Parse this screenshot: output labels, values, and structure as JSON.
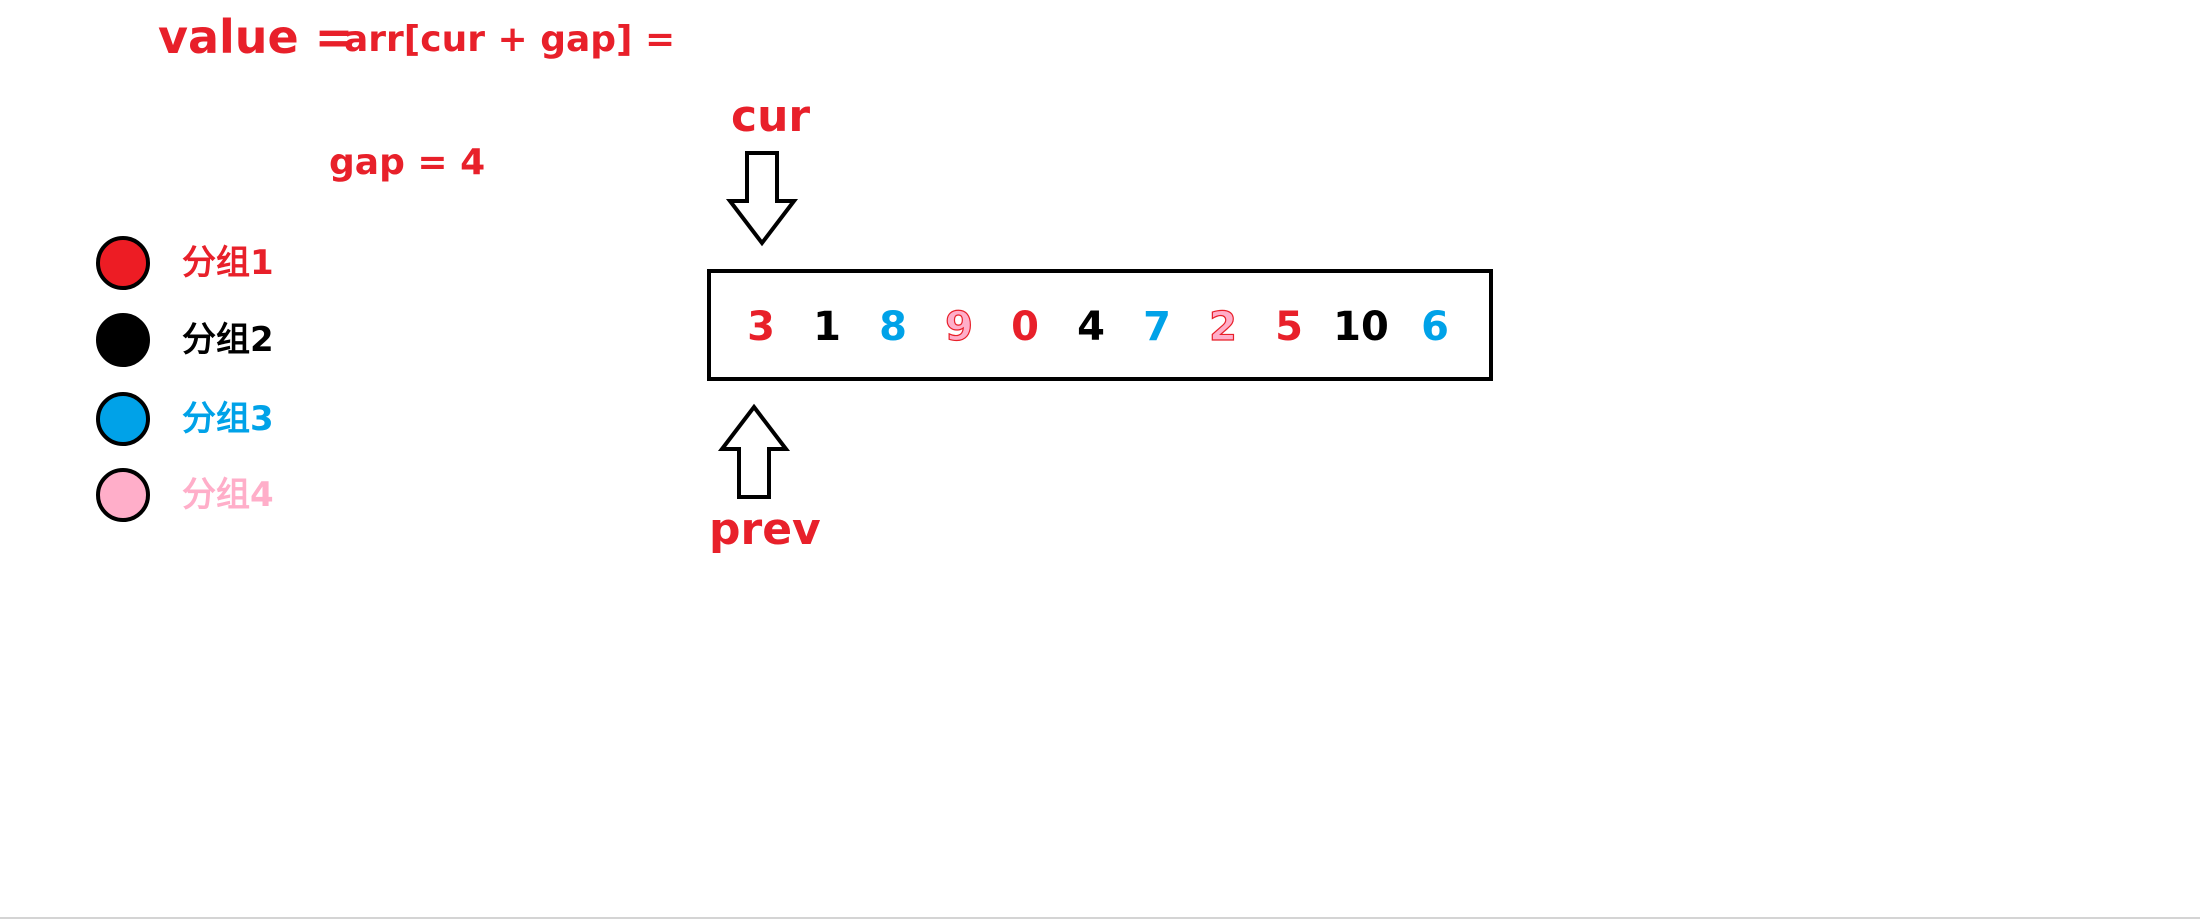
{
  "formula": {
    "value_label": "value =",
    "expression": "arr[cur + gap] ="
  },
  "gap_text": "gap = 4",
  "pointers": {
    "cur_label": "cur",
    "prev_label": "prev",
    "cur_arrow": "down-arrow-icon",
    "prev_arrow": "up-arrow-icon"
  },
  "legend": [
    {
      "label": "分组1",
      "color": "#ed1c24",
      "text_color": "#e8202a"
    },
    {
      "label": "分组2",
      "color": "#000000",
      "text_color": "#000000"
    },
    {
      "label": "分组3",
      "color": "#00a2e8",
      "text_color": "#00a2e8"
    },
    {
      "label": "分组4",
      "color": "#ffaec9",
      "text_color": "#ffaec9"
    }
  ],
  "array": [
    {
      "value": "3",
      "group": 1,
      "color": "#e8202a"
    },
    {
      "value": "1",
      "group": 2,
      "color": "#000000"
    },
    {
      "value": "8",
      "group": 3,
      "color": "#00a2e8"
    },
    {
      "value": "9",
      "group": 4,
      "color": "#ffaec9",
      "outline": true
    },
    {
      "value": "0",
      "group": 1,
      "color": "#e8202a"
    },
    {
      "value": "4",
      "group": 2,
      "color": "#000000"
    },
    {
      "value": "7",
      "group": 3,
      "color": "#00a2e8"
    },
    {
      "value": "2",
      "group": 4,
      "color": "#ffaec9",
      "outline": true
    },
    {
      "value": "5",
      "group": 1,
      "color": "#e8202a"
    },
    {
      "value": "10",
      "group": 2,
      "color": "#000000"
    },
    {
      "value": "6",
      "group": 3,
      "color": "#00a2e8"
    }
  ]
}
